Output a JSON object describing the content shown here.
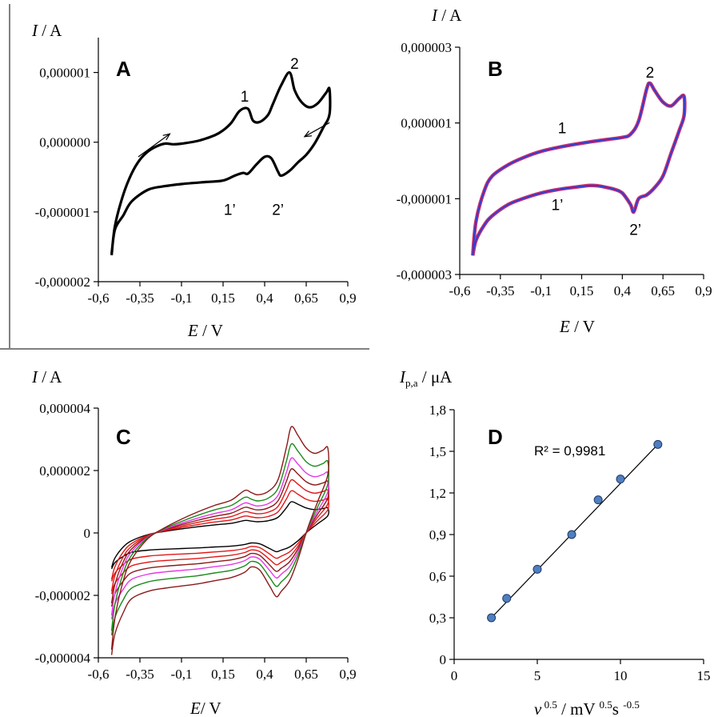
{
  "chart_data": [
    {
      "panel": "A",
      "type": "line",
      "ylabel_symbol": "I",
      "ylabel_unit": " / A",
      "xlabel_symbol": "E",
      "xlabel_unit": " / V",
      "xlim": [
        -0.6,
        0.9
      ],
      "ylim": [
        -2e-06,
        1.5e-06
      ],
      "xticks": [
        -0.6,
        -0.35,
        -0.1,
        0.15,
        0.4,
        0.65,
        0.9
      ],
      "xtick_labels": [
        "-0,6",
        "-0,35",
        "-0,1",
        "0,15",
        "0,4",
        "0,65",
        "0,9"
      ],
      "yticks": [
        -2e-06,
        -1e-06,
        0,
        1e-06
      ],
      "ytick_labels": [
        "-0,000002",
        "-0,000001",
        "0,000000",
        "0,000001"
      ],
      "peak_labels": [
        {
          "text": "1",
          "x": 0.28,
          "y": 5.8e-07
        },
        {
          "text": "2",
          "x": 0.58,
          "y": 1.05e-06
        },
        {
          "text": "1’",
          "x": 0.19,
          "y": -1.04e-06
        },
        {
          "text": "2’",
          "x": 0.48,
          "y": -1.04e-06
        }
      ],
      "arrows": [
        {
          "from": [
            -0.36,
            -2.1e-07
          ],
          "to": [
            -0.17,
            1.2e-07
          ]
        },
        {
          "from": [
            0.79,
            2.8e-07
          ],
          "to": [
            0.64,
            8e-08
          ]
        }
      ],
      "series": [
        {
          "color": "#000000",
          "width": 3.2,
          "x": [
            -0.52,
            -0.5,
            -0.45,
            -0.4,
            -0.35,
            -0.3,
            -0.25,
            -0.2,
            -0.15,
            -0.1,
            0,
            0.1,
            0.15,
            0.2,
            0.25,
            0.3,
            0.33,
            0.37,
            0.42,
            0.45,
            0.5,
            0.55,
            0.58,
            0.62,
            0.67,
            0.72,
            0.77,
            0.79,
            0.79,
            0.75,
            0.7,
            0.65,
            0.6,
            0.55,
            0.5,
            0.48,
            0.44,
            0.4,
            0.35,
            0.3,
            0.27,
            0.22,
            0.15,
            0.05,
            -0.1,
            -0.2,
            -0.3,
            -0.4,
            -0.45,
            -0.5,
            -0.52
          ],
          "y": [
            -1.62e-06,
            -1.2e-06,
            -7.5e-07,
            -4.5e-07,
            -2.5e-07,
            -1.3e-07,
            -6e-08,
            -2e-08,
            -3e-08,
            -2e-08,
            2e-08,
            1e-07,
            1.7e-07,
            2.8e-07,
            4.5e-07,
            4.8e-07,
            3.1e-07,
            2.9e-07,
            3.9e-07,
            5.5e-07,
            8.2e-07,
            1e-06,
            7.5e-07,
            5.8e-07,
            5e-07,
            5.6e-07,
            7.1e-07,
            7.6e-07,
            4e-07,
            2e-07,
            -2e-08,
            -1.8e-07,
            -2.9e-07,
            -4.1e-07,
            -4.8e-07,
            -4.2e-07,
            -2.3e-07,
            -2.1e-07,
            -3.2e-07,
            -4.5e-07,
            -4.4e-07,
            -4.8e-07,
            -5.5e-07,
            -5.7e-07,
            -6e-07,
            -6.3e-07,
            -6.8e-07,
            -8.5e-07,
            -1.05e-06,
            -1.25e-06,
            -1.6e-06
          ]
        }
      ]
    },
    {
      "panel": "B",
      "type": "line",
      "ylabel_symbol": "I",
      "ylabel_unit": " / A",
      "xlabel_symbol": "E",
      "xlabel_unit": " / V",
      "xlim": [
        -0.6,
        0.9
      ],
      "ylim": [
        -3e-06,
        3e-06
      ],
      "xticks": [
        -0.6,
        -0.35,
        -0.1,
        0.15,
        0.4,
        0.65,
        0.9
      ],
      "xtick_labels": [
        "-0,6",
        "-0,35",
        "-0,1",
        "0,15",
        "0,4",
        "0,65",
        "0,9"
      ],
      "yticks": [
        -3e-06,
        -1e-06,
        1e-06,
        3e-06
      ],
      "ytick_labels": [
        "-0,000003",
        "-0,000001",
        "0,000001",
        "0,000003"
      ],
      "peak_labels": [
        {
          "text": "1",
          "x": 0.03,
          "y": 7.3e-07
        },
        {
          "text": "2",
          "x": 0.57,
          "y": 2.2e-06
        },
        {
          "text": "1’",
          "x": 0.0,
          "y": -1.3e-06
        },
        {
          "text": "2’",
          "x": 0.48,
          "y": -1.95e-06
        }
      ],
      "series": [
        {
          "color": "#c8326e",
          "width": 4.5,
          "x": [
            -0.52,
            -0.5,
            -0.45,
            -0.4,
            -0.3,
            -0.2,
            -0.1,
            0,
            0.1,
            0.2,
            0.3,
            0.4,
            0.45,
            0.5,
            0.55,
            0.57,
            0.6,
            0.65,
            0.7,
            0.75,
            0.78,
            0.78,
            0.75,
            0.7,
            0.65,
            0.6,
            0.55,
            0.5,
            0.47,
            0.45,
            0.4,
            0.35,
            0.3,
            0.25,
            0.2,
            0.1,
            0,
            -0.1,
            -0.2,
            -0.3,
            -0.4,
            -0.45,
            -0.5,
            -0.52
          ],
          "y": [
            -2.5e-06,
            -1.6e-06,
            -8e-07,
            -4e-07,
            -1e-07,
            1e-07,
            2.5e-07,
            3.5e-07,
            4.3e-07,
            5e-07,
            5.6e-07,
            6.2e-07,
            7e-07,
            1.05e-06,
            1.9e-06,
            2.05e-06,
            1.85e-06,
            1.55e-06,
            1.45e-06,
            1.65e-06,
            1.7e-06,
            1.2e-06,
            8e-07,
            2e-07,
            -4e-07,
            -7e-07,
            -9e-07,
            -1e-06,
            -1.35e-06,
            -1.15e-06,
            -8.5e-07,
            -7.5e-07,
            -7e-07,
            -6.6e-07,
            -6.5e-07,
            -7e-07,
            -7.6e-07,
            -8.5e-07,
            -9.8e-07,
            -1.15e-06,
            -1.45e-06,
            -1.7e-06,
            -2.1e-06,
            -2.5e-06
          ]
        },
        {
          "color": "#2a3dd6",
          "width": 1.8,
          "x": [
            -0.52,
            -0.5,
            -0.45,
            -0.4,
            -0.3,
            -0.2,
            -0.1,
            0,
            0.1,
            0.2,
            0.3,
            0.4,
            0.45,
            0.5,
            0.55,
            0.57,
            0.6,
            0.65,
            0.7,
            0.75,
            0.78,
            0.78,
            0.75,
            0.7,
            0.65,
            0.6,
            0.55,
            0.5,
            0.47,
            0.45,
            0.4,
            0.35,
            0.3,
            0.25,
            0.2,
            0.1,
            0,
            -0.1,
            -0.2,
            -0.3,
            -0.4,
            -0.45,
            -0.5,
            -0.52
          ],
          "y": [
            -2.5e-06,
            -1.6e-06,
            -8e-07,
            -4e-07,
            -1e-07,
            1e-07,
            2.5e-07,
            3.5e-07,
            4.3e-07,
            5e-07,
            5.6e-07,
            6.2e-07,
            7e-07,
            1.05e-06,
            1.9e-06,
            2.05e-06,
            1.85e-06,
            1.55e-06,
            1.45e-06,
            1.65e-06,
            1.7e-06,
            1.2e-06,
            8e-07,
            2e-07,
            -4e-07,
            -7e-07,
            -9e-07,
            -1e-06,
            -1.35e-06,
            -1.15e-06,
            -8.5e-07,
            -7.5e-07,
            -7e-07,
            -6.6e-07,
            -6.5e-07,
            -7e-07,
            -7.6e-07,
            -8.5e-07,
            -9.8e-07,
            -1.15e-06,
            -1.45e-06,
            -1.7e-06,
            -2.1e-06,
            -2.5e-06
          ]
        }
      ]
    },
    {
      "panel": "C",
      "type": "line",
      "ylabel_symbol": "I",
      "ylabel_unit": " / A",
      "xlabel_symbol": "E",
      "xlabel_unit": "/ V",
      "xlim": [
        -0.6,
        0.9
      ],
      "ylim": [
        -4e-06,
        4e-06
      ],
      "xticks": [
        -0.6,
        -0.35,
        -0.1,
        0.15,
        0.4,
        0.65,
        0.9
      ],
      "xtick_labels": [
        "-0,6",
        "-0,35",
        "-0,1",
        "0,15",
        "0,4",
        "0,65",
        "0,9"
      ],
      "yticks": [
        -4e-06,
        -2e-06,
        0,
        2e-06,
        4e-06
      ],
      "ytick_labels": [
        "-0,000004",
        "-0,000002",
        "0",
        "0,000002",
        "0,000004"
      ],
      "scale_factors": [
        1.0,
        1.35,
        1.7,
        2.05,
        2.4,
        2.85,
        3.4
      ],
      "colors": [
        "#000000",
        "#e01818",
        "#e01818",
        "#8b1a1a",
        "#e637e6",
        "#1a8a1a",
        "#8b1a1a"
      ],
      "base_x": [
        -0.52,
        -0.5,
        -0.45,
        -0.4,
        -0.3,
        -0.2,
        -0.1,
        0,
        0.1,
        0.2,
        0.28,
        0.32,
        0.36,
        0.42,
        0.48,
        0.53,
        0.56,
        0.6,
        0.65,
        0.7,
        0.75,
        0.78,
        0.78,
        0.72,
        0.66,
        0.6,
        0.55,
        0.5,
        0.47,
        0.43,
        0.37,
        0.32,
        0.28,
        0.2,
        0.1,
        0,
        -0.1,
        -0.2,
        -0.3,
        -0.4,
        -0.45,
        -0.5,
        -0.52
      ],
      "base_y": [
        -1.1e-06,
        -8e-07,
        -4.5e-07,
        -2.5e-07,
        -5e-08,
        5e-08,
        1.3e-07,
        2e-07,
        2.6e-07,
        3.1e-07,
        4e-07,
        3.8e-07,
        3.6e-07,
        3.9e-07,
        5e-07,
        8e-07,
        1e-06,
        9.2e-07,
        8e-07,
        7.5e-07,
        7.8e-07,
        8e-07,
        5.5e-07,
        3e-07,
        5e-08,
        -2.5e-07,
        -4.5e-07,
        -5.5e-07,
        -6e-07,
        -5e-07,
        -3.5e-07,
        -3.2e-07,
        -3.7e-07,
        -4.2e-07,
        -4.5e-07,
        -4.8e-07,
        -5e-07,
        -5.2e-07,
        -5.5e-07,
        -6.2e-07,
        -7.5e-07,
        -9.5e-07,
        -1.15e-06
      ]
    },
    {
      "panel": "D",
      "type": "scatter",
      "ylabel_symbol": "I",
      "ylabel_sub": "p,a",
      "ylabel_unit": " / μA",
      "xlabel_symbol": "v",
      "xlabel_sup1": " 0.5",
      "xlabel_mid": " / mV ",
      "xlabel_sup2": "0.5",
      "xlabel_mid2": "s ",
      "xlabel_sup3": "-0.5",
      "xlim": [
        0,
        15
      ],
      "ylim": [
        0,
        1.8
      ],
      "xticks": [
        0,
        5,
        10,
        15
      ],
      "xtick_labels": [
        "0",
        "5",
        "10",
        "15"
      ],
      "yticks": [
        0,
        0.3,
        0.6,
        0.9,
        1.2,
        1.5,
        1.8
      ],
      "ytick_labels": [
        "0",
        "0,3",
        "0,6",
        "0,9",
        "1,2",
        "1,5",
        "1,8"
      ],
      "annotation": "R² = 0,9981",
      "x": [
        2.24,
        3.16,
        5.0,
        7.07,
        8.66,
        10.0,
        12.25
      ],
      "y": [
        0.3,
        0.44,
        0.65,
        0.9,
        1.15,
        1.3,
        1.55
      ],
      "trend": {
        "x": [
          2.24,
          12.25
        ],
        "y": [
          0.3,
          1.55
        ]
      }
    }
  ]
}
